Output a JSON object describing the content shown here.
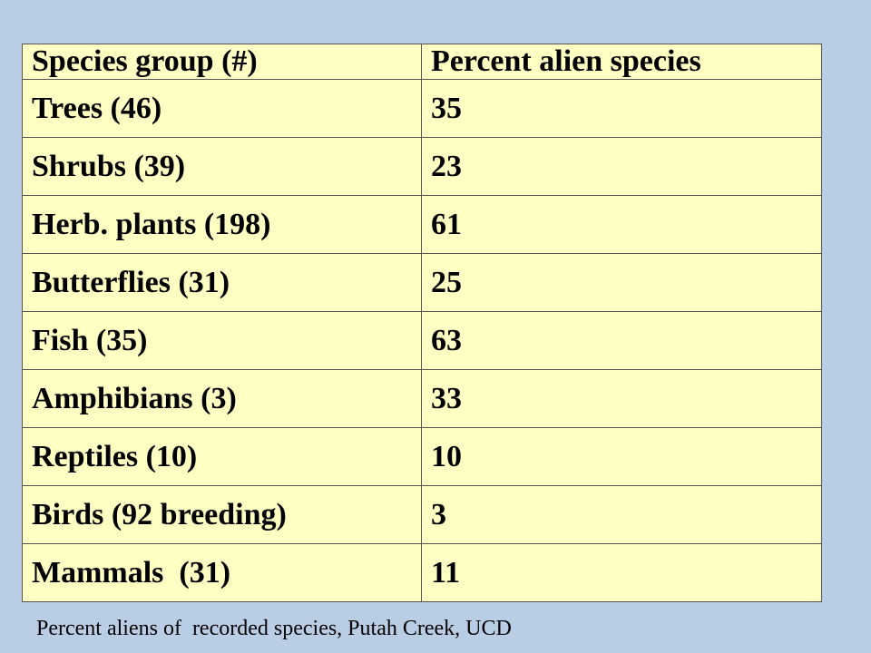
{
  "table": {
    "header": [
      "Species group (#)",
      "Percent alien species"
    ],
    "rows": [
      [
        "Trees (46)",
        35
      ],
      [
        "Shrubs (39)",
        23
      ],
      [
        "Herb. plants (198)",
        61
      ],
      [
        "Butterflies (31)",
        25
      ],
      [
        "Fish (35)",
        63
      ],
      [
        "Amphibians (3)",
        33
      ],
      [
        "Reptiles (10)",
        10
      ],
      [
        "Birds (92 breeding)",
        3
      ],
      [
        "Mammals  (31)",
        11
      ]
    ]
  },
  "caption": "Percent aliens of  recorded species, Putah Creek, UCD"
}
